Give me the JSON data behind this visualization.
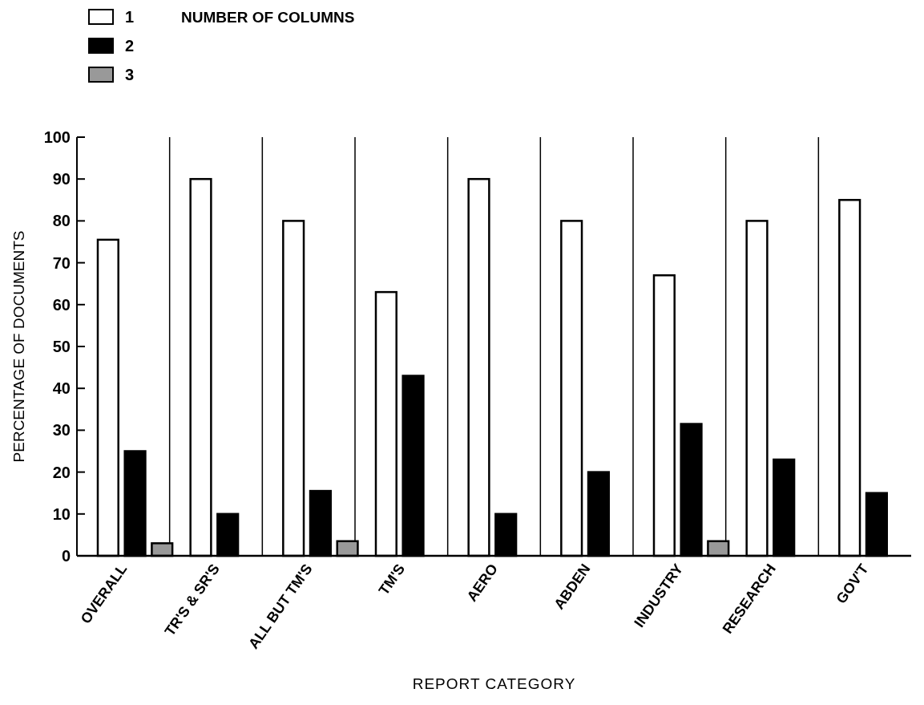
{
  "chart_data": {
    "type": "bar",
    "xlabel": "REPORT CATEGORY",
    "ylabel": "PERCENTAGE OF DOCUMENTS",
    "legend_title": "NUMBER OF COLUMNS",
    "legend": "top left",
    "categories": [
      "OVERALL",
      "TR'S & SR'S",
      "ALL BUT TM'S",
      "TM'S",
      "AERO",
      "ABDEN",
      "INDUSTRY",
      "RESEARCH",
      "GOV'T"
    ],
    "series": [
      {
        "name": "1",
        "color": "#ffffff",
        "values": [
          75.5,
          90,
          80,
          63,
          90,
          80,
          67,
          80,
          85
        ]
      },
      {
        "name": "2",
        "color": "#000000",
        "values": [
          25,
          10,
          15.5,
          43,
          10,
          20,
          31.5,
          23,
          15
        ]
      },
      {
        "name": "3",
        "color": "#999999",
        "values": [
          3,
          null,
          3.5,
          null,
          null,
          null,
          3.5,
          null,
          null
        ]
      }
    ],
    "ylim": [
      0,
      100
    ],
    "yticks": [
      0,
      10,
      20,
      30,
      40,
      50,
      60,
      70,
      80,
      90,
      100
    ],
    "grid": false
  }
}
